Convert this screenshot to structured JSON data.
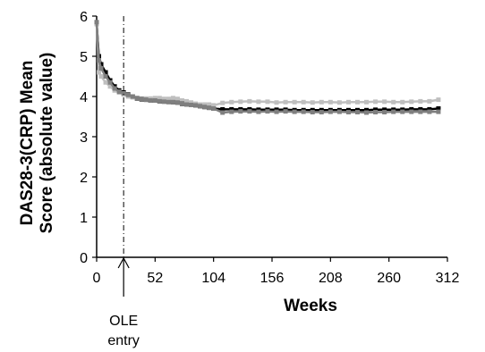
{
  "chart_data": {
    "type": "line",
    "xlabel": "Weeks",
    "ylabel_lines": [
      "DAS28-3(CRP) Mean",
      "Score (absolute value)"
    ],
    "xlim": [
      0,
      312
    ],
    "ylim": [
      0,
      6
    ],
    "xticks": [
      "0",
      "52",
      "104",
      "156",
      "208",
      "260",
      "312"
    ],
    "yticks": [
      "0",
      "1",
      "2",
      "3",
      "4",
      "5",
      "6"
    ],
    "grid": false,
    "annotation": {
      "x": 24,
      "lines": [
        "OLE",
        "entry"
      ],
      "style": "dash-dot vertical line with arrow"
    },
    "series": [
      {
        "color": "#000000",
        "x": [
          0,
          2,
          4,
          8,
          12,
          16,
          20,
          24,
          28,
          32,
          36,
          40,
          44,
          48,
          52,
          56,
          60,
          64,
          68,
          72,
          76,
          80,
          84,
          88,
          92,
          96,
          100,
          104,
          112,
          120,
          128,
          136,
          144,
          152,
          160,
          168,
          176,
          184,
          192,
          200,
          208,
          216,
          224,
          232,
          240,
          248,
          256,
          264,
          272,
          280,
          288,
          296,
          304
        ],
        "values": [
          5.8,
          5.0,
          4.8,
          4.6,
          4.4,
          4.25,
          4.15,
          4.1,
          4.05,
          4.0,
          3.95,
          3.93,
          3.92,
          3.9,
          3.9,
          3.88,
          3.88,
          3.87,
          3.86,
          3.85,
          3.82,
          3.8,
          3.8,
          3.78,
          3.76,
          3.74,
          3.72,
          3.7,
          3.68,
          3.68,
          3.68,
          3.68,
          3.67,
          3.67,
          3.67,
          3.67,
          3.66,
          3.66,
          3.66,
          3.66,
          3.66,
          3.66,
          3.66,
          3.66,
          3.66,
          3.67,
          3.67,
          3.67,
          3.67,
          3.68,
          3.68,
          3.68,
          3.7
        ]
      },
      {
        "color": "#bfbfbf",
        "x": [
          0,
          2,
          4,
          8,
          12,
          16,
          20,
          24,
          28,
          32,
          36,
          40,
          44,
          48,
          52,
          56,
          60,
          64,
          68,
          72,
          76,
          80,
          84,
          88,
          92,
          96,
          100,
          104,
          112,
          120,
          128,
          136,
          144,
          152,
          160,
          168,
          176,
          184,
          192,
          200,
          208,
          216,
          224,
          232,
          240,
          248,
          256,
          264,
          272,
          280,
          288,
          296,
          304
        ],
        "values": [
          5.8,
          4.6,
          4.5,
          4.35,
          4.25,
          4.15,
          4.1,
          4.05,
          4.0,
          3.98,
          3.96,
          3.95,
          3.95,
          3.95,
          3.96,
          3.96,
          3.94,
          3.94,
          3.96,
          3.94,
          3.9,
          3.88,
          3.85,
          3.82,
          3.8,
          3.8,
          3.8,
          3.78,
          3.84,
          3.86,
          3.87,
          3.88,
          3.87,
          3.87,
          3.85,
          3.86,
          3.86,
          3.86,
          3.85,
          3.86,
          3.86,
          3.85,
          3.86,
          3.86,
          3.86,
          3.87,
          3.87,
          3.86,
          3.86,
          3.87,
          3.88,
          3.88,
          3.92
        ]
      },
      {
        "color": "#7f7f7f",
        "x": [
          0,
          2,
          4,
          8,
          12,
          16,
          20,
          24,
          28,
          32,
          36,
          40,
          44,
          48,
          52,
          56,
          60,
          64,
          68,
          72,
          76,
          80,
          84,
          88,
          92,
          96,
          100,
          104,
          112,
          120,
          128,
          136,
          144,
          152,
          160,
          168,
          176,
          184,
          192,
          200,
          208,
          216,
          224,
          232,
          240,
          248,
          256,
          264,
          272,
          280,
          288,
          296,
          304
        ],
        "values": [
          5.85,
          4.9,
          4.7,
          4.5,
          4.35,
          4.2,
          4.12,
          4.08,
          4.04,
          4.0,
          3.96,
          3.94,
          3.92,
          3.9,
          3.9,
          3.88,
          3.87,
          3.86,
          3.86,
          3.85,
          3.83,
          3.8,
          3.79,
          3.78,
          3.76,
          3.74,
          3.72,
          3.7,
          3.6,
          3.62,
          3.63,
          3.63,
          3.62,
          3.63,
          3.62,
          3.63,
          3.62,
          3.62,
          3.61,
          3.61,
          3.62,
          3.62,
          3.61,
          3.61,
          3.6,
          3.61,
          3.61,
          3.62,
          3.62,
          3.62,
          3.62,
          3.62,
          3.62
        ]
      }
    ]
  }
}
